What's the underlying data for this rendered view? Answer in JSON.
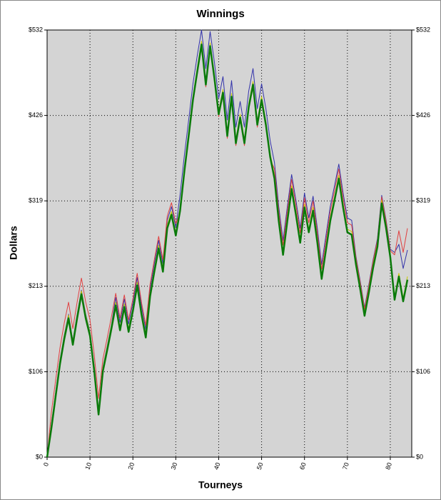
{
  "chart_data": {
    "type": "line",
    "title": "Winnings",
    "xlabel": "Tourneys",
    "ylabel": "Dollars",
    "x": [
      0,
      1,
      2,
      3,
      4,
      5,
      6,
      7,
      8,
      9,
      10,
      11,
      12,
      13,
      14,
      15,
      16,
      17,
      18,
      19,
      20,
      21,
      22,
      23,
      24,
      25,
      26,
      27,
      28,
      29,
      30,
      31,
      32,
      33,
      34,
      35,
      36,
      37,
      38,
      39,
      40,
      41,
      42,
      43,
      44,
      45,
      46,
      47,
      48,
      49,
      50,
      51,
      52,
      53,
      54,
      55,
      56,
      57,
      58,
      59,
      60,
      61,
      62,
      63,
      64,
      65,
      66,
      67,
      68,
      69,
      70,
      71,
      72,
      73,
      74,
      75,
      76,
      77,
      78,
      79,
      80,
      81,
      82,
      83,
      84
    ],
    "series": [
      {
        "color": "#3333aa",
        "width": 1,
        "values": [
          0,
          41,
          81,
          121,
          152,
          178,
          145,
          178,
          208,
          178,
          156,
          112,
          58,
          112,
          138,
          165,
          199,
          168,
          197,
          166,
          192,
          224,
          188,
          159,
          210,
          241,
          270,
          241,
          295,
          312,
          286,
          327,
          376,
          420,
          465,
          500,
          532,
          484,
          530,
          492,
          447,
          474,
          420,
          469,
          411,
          443,
          411,
          456,
          484,
          434,
          465,
          434,
          394,
          367,
          312,
          270,
          312,
          352,
          320,
          285,
          329,
          298,
          325,
          285,
          240,
          276,
          312,
          338,
          365,
          329,
          298,
          295,
          250,
          219,
          186,
          215,
          246,
          272,
          326,
          296,
          259,
          255,
          265,
          235,
          258
        ]
      },
      {
        "color": "#e04040",
        "width": 1,
        "values": [
          0,
          56,
          96,
          136,
          167,
          193,
          160,
          193,
          223,
          193,
          171,
          127,
          73,
          122,
          148,
          175,
          204,
          173,
          202,
          171,
          197,
          229,
          193,
          164,
          215,
          246,
          275,
          246,
          300,
          317,
          291,
          304,
          353,
          397,
          442,
          477,
          511,
          461,
          509,
          469,
          424,
          451,
          397,
          446,
          388,
          420,
          388,
          433,
          461,
          411,
          442,
          411,
          371,
          359,
          306,
          264,
          306,
          346,
          314,
          279,
          323,
          292,
          319,
          279,
          234,
          270,
          306,
          332,
          359,
          323,
          292,
          289,
          248,
          217,
          184,
          213,
          244,
          270,
          324,
          294,
          257,
          252,
          282,
          255,
          285
        ]
      },
      {
        "color": "#c8c800",
        "width": 1,
        "values": [
          0,
          40,
          80,
          120,
          151,
          177,
          144,
          177,
          207,
          177,
          155,
          111,
          57,
          111,
          137,
          164,
          193,
          162,
          191,
          160,
          186,
          218,
          182,
          153,
          204,
          235,
          264,
          235,
          289,
          306,
          280,
          311,
          360,
          404,
          449,
          484,
          518,
          468,
          516,
          476,
          431,
          458,
          404,
          453,
          395,
          427,
          395,
          440,
          468,
          418,
          449,
          418,
          378,
          351,
          298,
          256,
          298,
          338,
          306,
          271,
          315,
          284,
          311,
          271,
          226,
          262,
          298,
          324,
          351,
          315,
          284,
          281,
          244,
          213,
          180,
          209,
          240,
          266,
          320,
          290,
          253,
          200,
          229,
          198,
          225
        ]
      },
      {
        "color": "#0a7a0a",
        "width": 2.5,
        "values": [
          0,
          36,
          76,
          116,
          147,
          173,
          140,
          173,
          203,
          173,
          151,
          107,
          53,
          107,
          133,
          160,
          189,
          158,
          187,
          156,
          182,
          214,
          178,
          149,
          200,
          231,
          260,
          231,
          285,
          302,
          276,
          307,
          356,
          400,
          445,
          480,
          514,
          464,
          512,
          472,
          427,
          454,
          400,
          449,
          391,
          423,
          391,
          436,
          464,
          414,
          445,
          414,
          374,
          347,
          294,
          252,
          294,
          334,
          302,
          267,
          311,
          280,
          307,
          267,
          222,
          258,
          294,
          320,
          347,
          311,
          280,
          277,
          240,
          209,
          176,
          205,
          236,
          262,
          316,
          286,
          249,
          196,
          225,
          194,
          221
        ]
      }
    ],
    "xlim": [
      0,
      85
    ],
    "xticks": [
      0,
      10,
      20,
      30,
      40,
      50,
      60,
      70,
      80
    ],
    "ylim": [
      0,
      532
    ],
    "yticks": [
      {
        "value": 0,
        "label": "$0"
      },
      {
        "value": 106.4,
        "label": "$106"
      },
      {
        "value": 212.8,
        "label": "$213"
      },
      {
        "value": 319.2,
        "label": "$319"
      },
      {
        "value": 425.6,
        "label": "$426"
      },
      {
        "value": 532,
        "label": "$532"
      }
    ],
    "grid": true,
    "plot_background": "#d4d4d4"
  }
}
